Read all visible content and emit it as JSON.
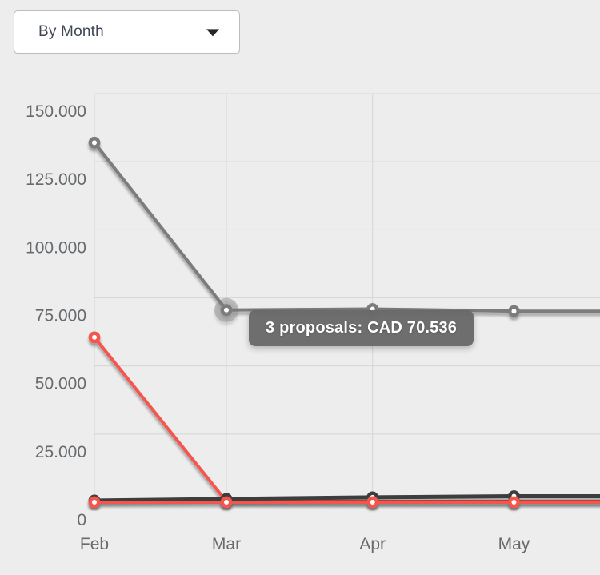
{
  "dropdown": {
    "label": "By Month",
    "caret_icon": "triangle-down"
  },
  "tooltip": {
    "text": "3 proposals: CAD 70.536"
  },
  "colors": {
    "background": "#ededed",
    "grid": "#d6d6d6",
    "axis_text": "#666a6d",
    "tooltip_bg": "#686868",
    "tooltip_text": "#ffffff",
    "series_gray": "#7c7c7c",
    "series_red": "#f4564e",
    "series_dark": "#3d3d3d",
    "point_fill": "#ffffff",
    "halo": "rgba(120,120,120,0.40)"
  },
  "chart_data": {
    "type": "line",
    "title": "",
    "xlabel": "",
    "ylabel": "",
    "categories": [
      "Feb",
      "Mar",
      "Apr",
      "May"
    ],
    "x_day_offsets": [
      0,
      28,
      59,
      89
    ],
    "ylim": [
      0,
      150000
    ],
    "y_tick_values": [
      0,
      25000,
      50000,
      75000,
      100000,
      125000,
      150000
    ],
    "y_tick_labels": [
      "0",
      "25.000",
      "50.000",
      "75.000",
      "100.000",
      "125.000",
      "150.000"
    ],
    "grid": true,
    "legend": "none",
    "lines_continue_past_right_edge": true,
    "series": [
      {
        "id": "gray",
        "color_key": "series_gray",
        "stroke_width": 4,
        "values": [
          132000,
          70536,
          70900,
          70100
        ]
      },
      {
        "id": "salmon",
        "color_key": "series_red",
        "stroke_width": 4,
        "values": [
          60500,
          300,
          300,
          300
        ]
      },
      {
        "id": "dark",
        "color_key": "series_dark",
        "stroke_width": 5,
        "values": [
          600,
          1200,
          1800,
          2200
        ]
      },
      {
        "id": "red-flat",
        "color_key": "series_red",
        "stroke_width": 4,
        "values": [
          0,
          0,
          0,
          0
        ]
      }
    ],
    "highlight": {
      "series_id": "gray",
      "category": "Mar",
      "category_index": 1,
      "value": 70536,
      "proposal_count": 3,
      "currency": "CAD",
      "tooltip": "3 proposals: CAD 70.536",
      "halo": true
    }
  }
}
